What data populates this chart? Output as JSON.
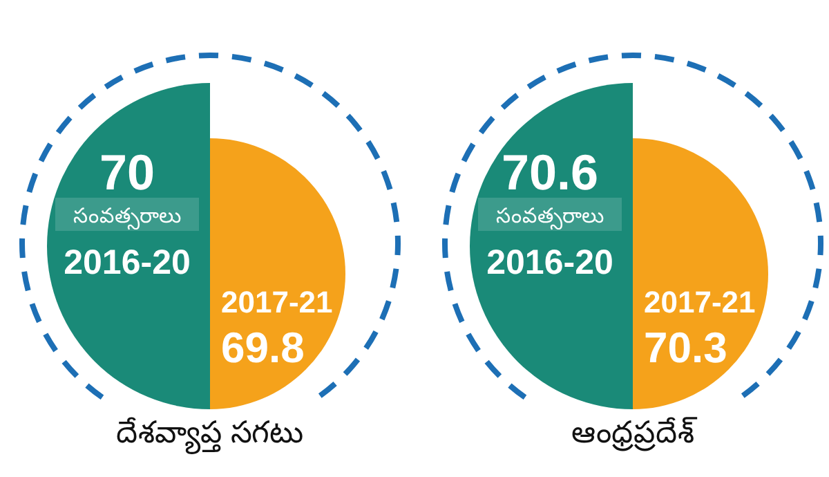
{
  "chart_data": [
    {
      "type": "other",
      "title": "దేశవ్యాప్త సగటు",
      "categories": [
        "2016-20",
        "2017-21"
      ],
      "values": [
        70,
        69.8
      ],
      "data_labels": true,
      "colors": [
        "#1a8a78",
        "#f5a21b"
      ],
      "annotations": [
        "సంవత్సరాలు"
      ]
    },
    {
      "type": "other",
      "title": "ఆంధ్రప్రదేశ్",
      "categories": [
        "2016-20",
        "2017-21"
      ],
      "values": [
        70.6,
        70.3
      ],
      "data_labels": true,
      "colors": [
        "#1a8a78",
        "#f5a21b"
      ],
      "annotations": [
        "సంవత్సరాలు"
      ]
    }
  ]
}
